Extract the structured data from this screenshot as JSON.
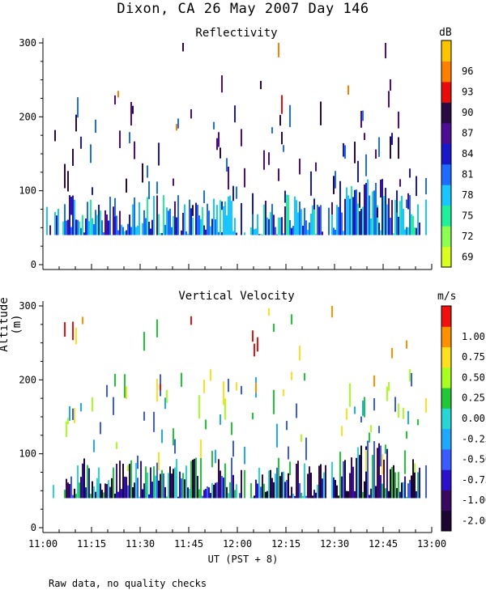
{
  "title": "Dixon, CA 26 May 2007  Day 146",
  "y_axis_label": "Altitude (m)",
  "x_axis_label": "UT  (PST + 8)",
  "footnote": "Raw data, no quality checks",
  "chart_data": [
    {
      "type": "heatmap",
      "title": "Reflectivity",
      "xlabel": "UT  (PST + 8)",
      "ylabel": "Altitude (m)",
      "x_range": [
        "11:00",
        "13:00"
      ],
      "ylim": [
        0,
        300
      ],
      "y_ticks": [
        "0",
        "100",
        "200",
        "300"
      ],
      "colorbar": {
        "unit": "dB",
        "labels": [
          "69",
          "72",
          "75",
          "78",
          "81",
          "84",
          "87",
          "90",
          "93",
          "96"
        ],
        "colors": [
          "#d8ff20",
          "#8cff50",
          "#20f09a",
          "#19c6ff",
          "#1e6bff",
          "#1818c8",
          "#4c0c96",
          "#2a0a42",
          "#e80c0c",
          "#ff8000",
          "#ffc400"
        ]
      }
    },
    {
      "type": "heatmap",
      "title": "Vertical Velocity",
      "xlabel": "UT  (PST + 8)",
      "ylabel": "Altitude (m)",
      "x_range": [
        "11:00",
        "13:00"
      ],
      "ylim": [
        0,
        300
      ],
      "y_ticks": [
        "0",
        "100",
        "200",
        "300"
      ],
      "colorbar": {
        "unit": "m/s",
        "labels": [
          "-2.00",
          "-1.00",
          "-0.75",
          "-0.50",
          "-0.25",
          "0.00",
          "0.25",
          "0.50",
          "0.75",
          "1.00"
        ],
        "colors": [
          "#1a0630",
          "#3a0a60",
          "#2a10c8",
          "#3a5cff",
          "#20a8ff",
          "#29d6d6",
          "#20c838",
          "#a8ff20",
          "#ffe020",
          "#ff9000",
          "#f01010"
        ]
      }
    }
  ],
  "x_tick_labels": [
    "11:00",
    "11:15",
    "11:30",
    "11:45",
    "12:00",
    "12:15",
    "12:30",
    "12:45",
    "13:00"
  ]
}
